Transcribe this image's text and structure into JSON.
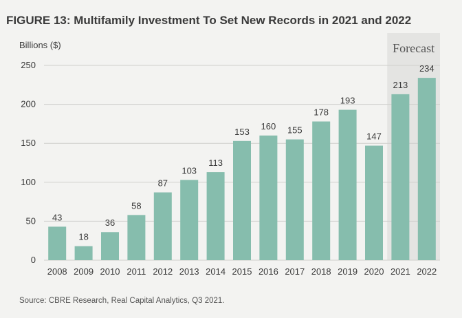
{
  "title": "FIGURE 13: Multifamily Investment To Set New Records in 2021 and 2022",
  "source": "Source: CBRE Research, Real Capital Analytics, Q3 2021.",
  "colors": {
    "bar": "#86bdad",
    "forecast_band": "#e4e4e2",
    "gridline": "#cfcfcc",
    "background": "#f3f3f1"
  },
  "chart_data": {
    "type": "bar",
    "title": "FIGURE 13: Multifamily Investment To Set New Records in 2021 and 2022",
    "xlabel": "",
    "ylabel": "Billions ($)",
    "ylim": [
      0,
      250
    ],
    "yticks": [
      0,
      50,
      100,
      150,
      200,
      250
    ],
    "grid": true,
    "categories": [
      "2008",
      "2009",
      "2010",
      "2011",
      "2012",
      "2013",
      "2014",
      "2015",
      "2016",
      "2017",
      "2018",
      "2019",
      "2020",
      "2021",
      "2022"
    ],
    "values": [
      43,
      18,
      36,
      58,
      87,
      103,
      113,
      153,
      160,
      155,
      178,
      193,
      147,
      213,
      234
    ],
    "annotation": "Forecast",
    "forecast_categories": [
      "2021",
      "2022"
    ]
  }
}
